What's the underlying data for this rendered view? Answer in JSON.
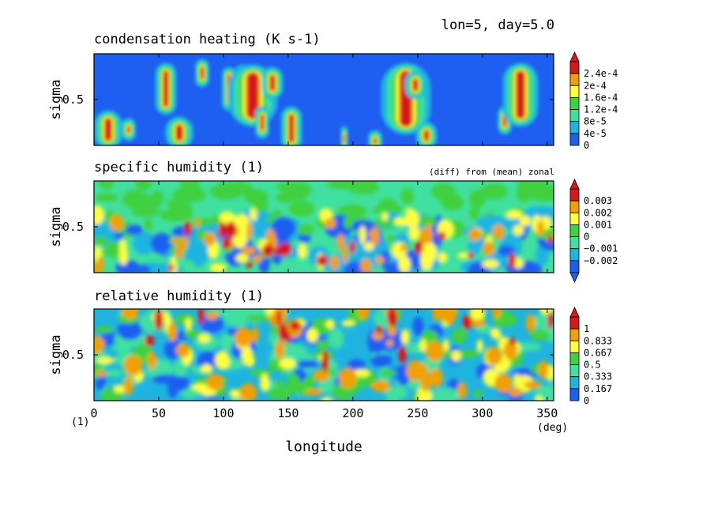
{
  "figure": {
    "header": "lon=5, day=5.0",
    "x_axis_label": "longitude",
    "x_unit": "(deg)",
    "y_unit_corner": "(1)",
    "x_ticks": [
      "0",
      "50",
      "100",
      "150",
      "200",
      "250",
      "300",
      "350"
    ],
    "x_tick_values": [
      0,
      50,
      100,
      150,
      200,
      250,
      300,
      350
    ],
    "y_label": "sigma",
    "y_tick_label": "0.5"
  },
  "chart_data": [
    {
      "type": "heatmap",
      "title": "condensation heating (K s-1)",
      "subtitle": "",
      "xlabel": "longitude",
      "ylabel": "sigma",
      "xlim": [
        0,
        355
      ],
      "ylim": [
        0,
        1
      ],
      "colorbar": {
        "labels": [
          "2.4e-4",
          "2e-4",
          "1.6e-4",
          "1.2e-4",
          "8e-5",
          "4e-5",
          "0"
        ],
        "values": [
          0.00024,
          0.0002,
          0.00016,
          0.00012,
          8e-05,
          4e-05,
          0
        ],
        "colors": [
          "#d7191c",
          "#f0a000",
          "#ffff40",
          "#40d040",
          "#40e0a0",
          "#1fb4e0",
          "#1e5ef0"
        ],
        "top_arrow": true,
        "bottom_arrow": false
      }
    },
    {
      "type": "heatmap",
      "title": "specific humidity (1)",
      "subtitle": "(diff) from (mean) zonal",
      "xlabel": "longitude",
      "ylabel": "sigma",
      "xlim": [
        0,
        355
      ],
      "ylim": [
        0,
        1
      ],
      "colorbar": {
        "labels": [
          "0.003",
          "0.002",
          "0.001",
          "0",
          "−0.001",
          "−0.002"
        ],
        "values": [
          0.003,
          0.002,
          0.001,
          0,
          -0.001,
          -0.002
        ],
        "colors": [
          "#d7191c",
          "#f0a000",
          "#ffff40",
          "#40d040",
          "#40e0a0",
          "#1fb4e0",
          "#1e5ef0"
        ],
        "top_arrow": true,
        "bottom_arrow": true
      }
    },
    {
      "type": "heatmap",
      "title": "relative humidity (1)",
      "subtitle": "",
      "xlabel": "longitude",
      "ylabel": "sigma",
      "xlim": [
        0,
        355
      ],
      "ylim": [
        0,
        1
      ],
      "colorbar": {
        "labels": [
          "1",
          "0.833",
          "0.667",
          "0.5",
          "0.333",
          "0.167",
          "0"
        ],
        "values": [
          1,
          0.833,
          0.667,
          0.5,
          0.333,
          0.167,
          0
        ],
        "colors": [
          "#d7191c",
          "#f0a000",
          "#ffff40",
          "#40d040",
          "#40e0a0",
          "#1fb4e0",
          "#1e5ef0"
        ],
        "top_arrow": true,
        "bottom_arrow": false
      }
    }
  ]
}
